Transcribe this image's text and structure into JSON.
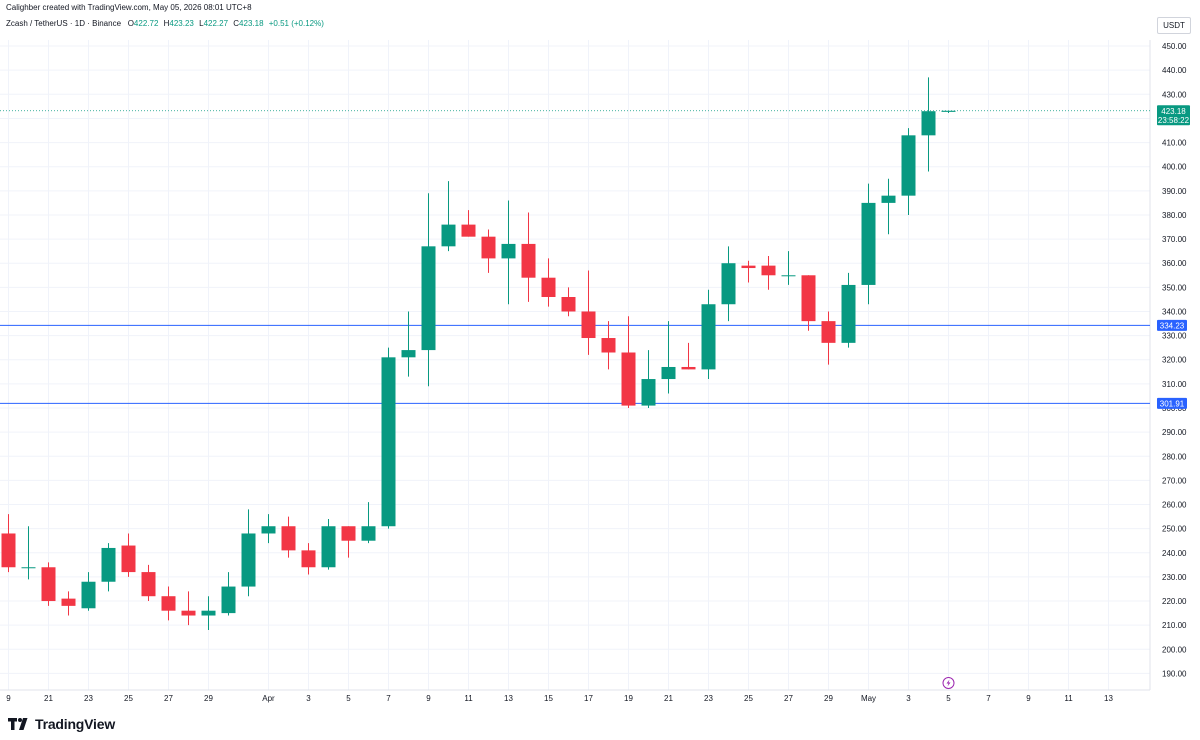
{
  "header": {
    "credit": "Calighber created with TradingView.com, May 05, 2026 08:01 UTC+8",
    "symbol_line": "Zcash / TetherUS · 1D · Binance",
    "ohlc": {
      "o_label": "O",
      "o_value": "422.72",
      "h_label": "H",
      "h_value": "423.23",
      "l_label": "L",
      "l_value": "422.27",
      "c_label": "C",
      "c_value": "423.18",
      "change": "+0.51 (+0.12%)"
    },
    "currency": "USDT"
  },
  "branding": {
    "logo_text": "TradingView",
    "logo_icon": "tradingview-logo-icon"
  },
  "colors": {
    "up": "#089981",
    "down": "#f23645",
    "level_line": "#2962ff",
    "price_line": "#089981",
    "grid": "#f0f3fa",
    "text": "#131722"
  },
  "chart_data": {
    "type": "candlestick",
    "title": "Zcash / TetherUS · 1D · Binance",
    "xlabel": "",
    "ylabel": "USDT",
    "ylim": [
      185,
      455
    ],
    "grid": true,
    "y_ticks": [
      "190.00",
      "200.00",
      "210.00",
      "220.00",
      "230.00",
      "240.00",
      "250.00",
      "260.00",
      "270.00",
      "280.00",
      "290.00",
      "300.00",
      "310.00",
      "320.00",
      "330.00",
      "340.00",
      "350.00",
      "360.00",
      "370.00",
      "380.00",
      "390.00",
      "400.00",
      "410.00",
      "420.00",
      "430.00",
      "440.00",
      "450.00"
    ],
    "x_ticks": [
      {
        "label": "9",
        "day": 0
      },
      {
        "label": "21",
        "day": 2
      },
      {
        "label": "23",
        "day": 4
      },
      {
        "label": "25",
        "day": 6
      },
      {
        "label": "27",
        "day": 8
      },
      {
        "label": "29",
        "day": 10
      },
      {
        "label": "Apr",
        "day": 13
      },
      {
        "label": "3",
        "day": 15
      },
      {
        "label": "5",
        "day": 17
      },
      {
        "label": "7",
        "day": 19
      },
      {
        "label": "9",
        "day": 21
      },
      {
        "label": "11",
        "day": 23
      },
      {
        "label": "13",
        "day": 25
      },
      {
        "label": "15",
        "day": 27
      },
      {
        "label": "17",
        "day": 29
      },
      {
        "label": "19",
        "day": 31
      },
      {
        "label": "21",
        "day": 33
      },
      {
        "label": "23",
        "day": 35
      },
      {
        "label": "25",
        "day": 37
      },
      {
        "label": "27",
        "day": 39
      },
      {
        "label": "29",
        "day": 41
      },
      {
        "label": "May",
        "day": 43
      },
      {
        "label": "3",
        "day": 45
      },
      {
        "label": "5",
        "day": 47
      },
      {
        "label": "7",
        "day": 49
      },
      {
        "label": "9",
        "day": 51
      },
      {
        "label": "11",
        "day": 53
      },
      {
        "label": "13",
        "day": 55
      }
    ],
    "candles": [
      {
        "o": 248,
        "h": 256,
        "l": 232,
        "c": 234
      },
      {
        "o": 234,
        "h": 251,
        "l": 229,
        "c": 234
      },
      {
        "o": 234,
        "h": 236,
        "l": 218,
        "c": 220
      },
      {
        "o": 221,
        "h": 224,
        "l": 214,
        "c": 218
      },
      {
        "o": 217,
        "h": 232,
        "l": 216,
        "c": 228
      },
      {
        "o": 228,
        "h": 244,
        "l": 224,
        "c": 242
      },
      {
        "o": 243,
        "h": 248,
        "l": 230,
        "c": 232
      },
      {
        "o": 232,
        "h": 235,
        "l": 220,
        "c": 222
      },
      {
        "o": 222,
        "h": 226,
        "l": 212,
        "c": 216
      },
      {
        "o": 216,
        "h": 224,
        "l": 210,
        "c": 214
      },
      {
        "o": 214,
        "h": 222,
        "l": 208,
        "c": 216
      },
      {
        "o": 215,
        "h": 232,
        "l": 214,
        "c": 226
      },
      {
        "o": 226,
        "h": 258,
        "l": 222,
        "c": 248
      },
      {
        "o": 248,
        "h": 256,
        "l": 244,
        "c": 251
      },
      {
        "o": 251,
        "h": 255,
        "l": 238,
        "c": 241
      },
      {
        "o": 241,
        "h": 244,
        "l": 231,
        "c": 234
      },
      {
        "o": 234,
        "h": 254,
        "l": 233,
        "c": 251
      },
      {
        "o": 251,
        "h": 251,
        "l": 238,
        "c": 245
      },
      {
        "o": 245,
        "h": 261,
        "l": 244,
        "c": 251
      },
      {
        "o": 251,
        "h": 325,
        "l": 250,
        "c": 321
      },
      {
        "o": 321,
        "h": 340,
        "l": 313,
        "c": 324
      },
      {
        "o": 324,
        "h": 389,
        "l": 309,
        "c": 367
      },
      {
        "o": 367,
        "h": 394,
        "l": 365,
        "c": 376
      },
      {
        "o": 376,
        "h": 382,
        "l": 371,
        "c": 371
      },
      {
        "o": 371,
        "h": 374,
        "l": 356,
        "c": 362
      },
      {
        "o": 362,
        "h": 386,
        "l": 343,
        "c": 368
      },
      {
        "o": 368,
        "h": 381,
        "l": 344,
        "c": 354
      },
      {
        "o": 354,
        "h": 362,
        "l": 342,
        "c": 346
      },
      {
        "o": 346,
        "h": 350,
        "l": 338,
        "c": 340
      },
      {
        "o": 340,
        "h": 357,
        "l": 322,
        "c": 329
      },
      {
        "o": 329,
        "h": 336,
        "l": 316,
        "c": 323
      },
      {
        "o": 323,
        "h": 338,
        "l": 300,
        "c": 301
      },
      {
        "o": 301,
        "h": 324,
        "l": 300,
        "c": 312
      },
      {
        "o": 312,
        "h": 336,
        "l": 306,
        "c": 317
      },
      {
        "o": 317,
        "h": 327,
        "l": 316,
        "c": 316
      },
      {
        "o": 316,
        "h": 349,
        "l": 312,
        "c": 343
      },
      {
        "o": 343,
        "h": 367,
        "l": 336,
        "c": 360
      },
      {
        "o": 359,
        "h": 361,
        "l": 352,
        "c": 358
      },
      {
        "o": 359,
        "h": 363,
        "l": 349,
        "c": 355
      },
      {
        "o": 355,
        "h": 365,
        "l": 351,
        "c": 355
      },
      {
        "o": 355,
        "h": 355,
        "l": 332,
        "c": 336
      },
      {
        "o": 336,
        "h": 340,
        "l": 318,
        "c": 327
      },
      {
        "o": 327,
        "h": 356,
        "l": 325,
        "c": 351
      },
      {
        "o": 351,
        "h": 393,
        "l": 343,
        "c": 385
      },
      {
        "o": 385,
        "h": 395,
        "l": 372,
        "c": 388
      },
      {
        "o": 388,
        "h": 416,
        "l": 380,
        "c": 413
      },
      {
        "o": 413,
        "h": 437,
        "l": 398,
        "c": 423
      },
      {
        "o": 422.72,
        "h": 423.23,
        "l": 422.27,
        "c": 423.18
      }
    ],
    "horizontal_levels": [
      334.23,
      301.91
    ],
    "level_labels": [
      "334.23",
      "301.91"
    ],
    "last_price": 423.18,
    "last_price_label": "423.18",
    "countdown": "23:58:22",
    "event_marker_icon": "lightning-icon"
  }
}
